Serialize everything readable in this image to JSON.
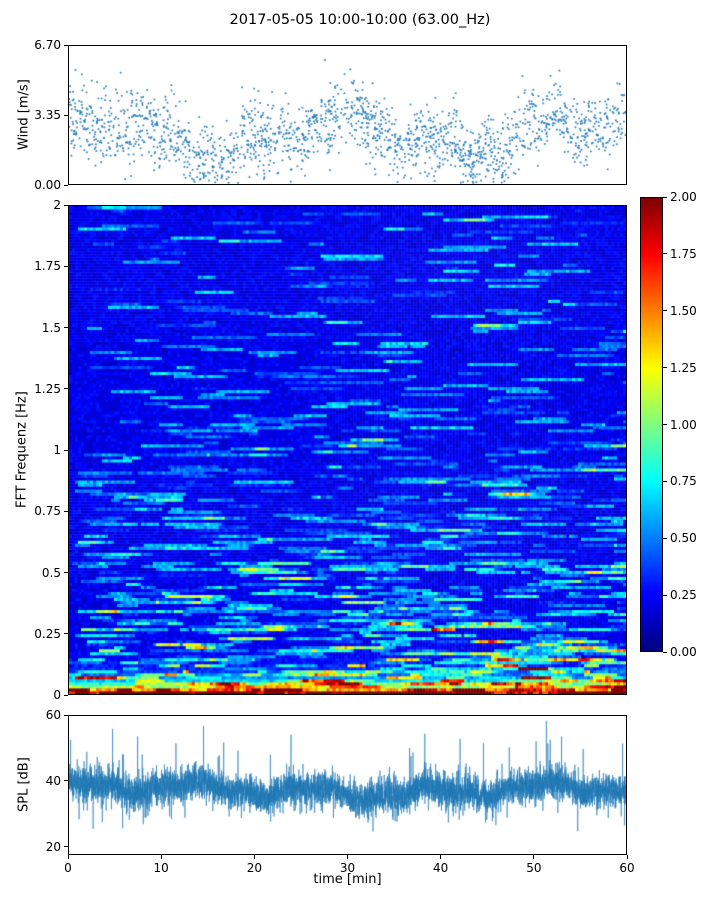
{
  "figure": {
    "title": "2017-05-05 10:00-10:00 (63.00_Hz)",
    "background": "#ffffff"
  },
  "chart_data": [
    {
      "id": "wind",
      "type": "scatter",
      "ylabel": "Wind [m/s]",
      "xlim": [
        0,
        60
      ],
      "ylim": [
        0,
        6.7
      ],
      "yticks": [
        0,
        3.35,
        6.7
      ],
      "ytick_labels": [
        "0.00",
        "3.35",
        "6.70"
      ],
      "marker_color": "#1f77b4",
      "n_points": 1900,
      "seed": 7,
      "mean_wind": 2.4,
      "noise_std": 0.85,
      "grid": false,
      "description": "Wind speed scatter, noisy values mostly 0.5-5 m/s with sparse peaks near 6.5"
    },
    {
      "id": "spectrogram",
      "type": "heatmap",
      "ylabel": "FFT Frequenz [Hz]",
      "xlim": [
        0,
        60
      ],
      "ylim": [
        0,
        2
      ],
      "yticks": [
        0,
        0.25,
        0.5,
        0.75,
        1,
        1.25,
        1.5,
        1.75,
        2
      ],
      "ytick_labels": [
        "0",
        "0.25",
        "0.5",
        "0.75",
        "1",
        "1.25",
        "1.5",
        "1.75",
        "2"
      ],
      "zlim": [
        0,
        2
      ],
      "colormap": "jet",
      "nx": 186,
      "ny": 162,
      "seed": 11,
      "base_level": 0.2,
      "low_freq_boost": 2.0,
      "description": "Mostly blue field (~0.15-0.35) with horizontal cyan/green streaks increasing toward low frequency; orange/red streaks below ~0.3 Hz; solid dark-red band at lowest frequencies",
      "colorbar": {
        "ticks": [
          0,
          0.25,
          0.5,
          0.75,
          1,
          1.25,
          1.5,
          1.75,
          2
        ],
        "tick_labels": [
          "0.00",
          "0.25",
          "0.50",
          "0.75",
          "1.00",
          "1.25",
          "1.50",
          "1.75",
          "2.00"
        ],
        "range": [
          0,
          2
        ]
      }
    },
    {
      "id": "spl",
      "type": "line",
      "ylabel": "SPL [dB]",
      "xlabel": "time [min]",
      "xlim": [
        0,
        60
      ],
      "ylim": [
        17.5,
        60
      ],
      "yticks": [
        20,
        40,
        60
      ],
      "ytick_labels": [
        "20",
        "40",
        "60"
      ],
      "xticks": [
        0,
        10,
        20,
        30,
        40,
        50,
        60
      ],
      "xtick_labels": [
        "0",
        "10",
        "20",
        "30",
        "40",
        "50",
        "60"
      ],
      "line_color": "#1f77b4",
      "n_points": 6000,
      "seed": 23,
      "mean_spl": 37,
      "description": "Dense noisy SPL trace around 33-45 dB with spikes to ~57 and dips to ~20"
    }
  ]
}
